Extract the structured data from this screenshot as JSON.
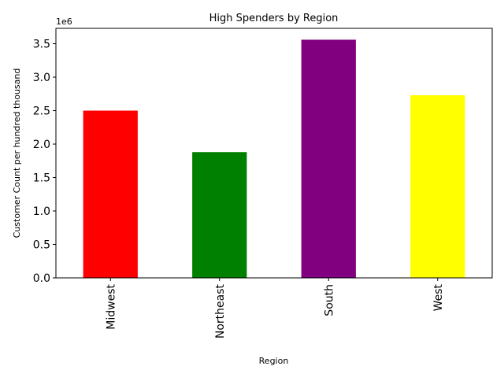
{
  "chart_data": {
    "type": "bar",
    "title": "High Spenders by Region",
    "xlabel": "Region",
    "ylabel": "Customer Count per hundred thousand",
    "offset_label": "1e6",
    "categories": [
      "Midwest",
      "Northeast",
      "South",
      "West"
    ],
    "values": [
      2500000,
      1880000,
      3560000,
      2730000
    ],
    "colors": [
      "#ff0000",
      "#008000",
      "#800080",
      "#ffff00"
    ],
    "ylim": [
      0,
      3730000
    ],
    "yticks": [
      {
        "value": 0,
        "label": "0.0"
      },
      {
        "value": 500000,
        "label": "0.5"
      },
      {
        "value": 1000000,
        "label": "1.0"
      },
      {
        "value": 1500000,
        "label": "1.5"
      },
      {
        "value": 2000000,
        "label": "2.0"
      },
      {
        "value": 2500000,
        "label": "2.5"
      },
      {
        "value": 3000000,
        "label": "3.0"
      },
      {
        "value": 3500000,
        "label": "3.5"
      }
    ],
    "grid": false,
    "legend": "none"
  }
}
